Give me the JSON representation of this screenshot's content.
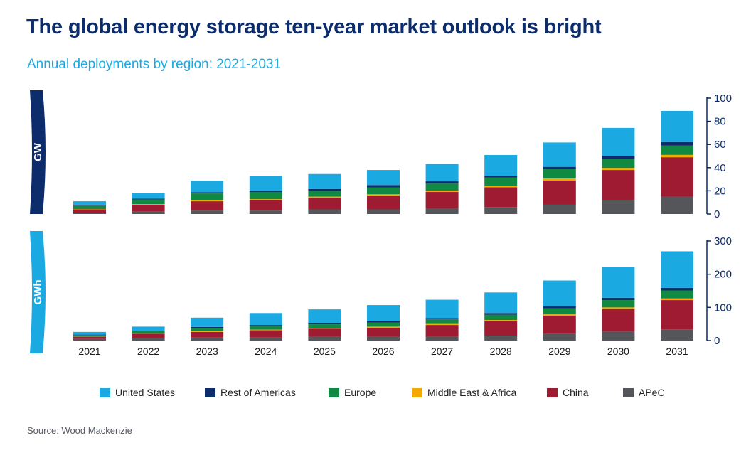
{
  "title": "The global energy storage ten-year market outlook is bright",
  "subtitle": "Annual deployments  by region: 2021-2031",
  "source": "Source: Wood Mackenzie",
  "colors": {
    "United States": "#1ba9e1",
    "Rest of Americas": "#0c2c6b",
    "Europe": "#108a43",
    "Middle East & Africa": "#f2a900",
    "China": "#9e1b32",
    "APeC": "#54565a",
    "axis": "#0c2c6b",
    "gw_tab": "#0c2c6b",
    "gwh_tab": "#1ba9e1"
  },
  "legend": [
    "United States",
    "Rest of Americas",
    "Europe",
    "Middle East & Africa",
    "China",
    "APeC"
  ],
  "chart_data": [
    {
      "type": "bar",
      "stacked": true,
      "unit_label": "GW",
      "categories": [
        "2021",
        "2022",
        "2023",
        "2024",
        "2025",
        "2026",
        "2027",
        "2028",
        "2029",
        "2030",
        "2031"
      ],
      "ylim": [
        0,
        100
      ],
      "yticks": [
        0,
        20,
        40,
        60,
        80,
        100
      ],
      "y_axis_side": "right",
      "series": [
        {
          "name": "APeC",
          "values": [
            1,
            2,
            3,
            3,
            4,
            4,
            5,
            6,
            8,
            12,
            15
          ]
        },
        {
          "name": "China",
          "values": [
            3,
            6,
            8,
            9,
            10,
            12,
            14,
            17,
            21,
            26,
            34
          ]
        },
        {
          "name": "Middle East & Africa",
          "values": [
            0.3,
            0.5,
            0.7,
            0.8,
            1,
            1,
            1.2,
            1.4,
            1.7,
            1.8,
            2
          ]
        },
        {
          "name": "Europe",
          "values": [
            3,
            4,
            6,
            6,
            5,
            6,
            6,
            7,
            8,
            8,
            8
          ]
        },
        {
          "name": "Rest of Americas",
          "values": [
            0.7,
            0.8,
            1,
            1,
            1.5,
            2,
            2,
            1.5,
            2,
            2.5,
            3
          ]
        },
        {
          "name": "United States",
          "values": [
            3,
            5,
            10,
            13,
            13,
            13,
            15,
            18,
            21,
            24,
            27
          ]
        }
      ]
    },
    {
      "type": "bar",
      "stacked": true,
      "unit_label": "GWh",
      "categories": [
        "2021",
        "2022",
        "2023",
        "2024",
        "2025",
        "2026",
        "2027",
        "2028",
        "2029",
        "2030",
        "2031"
      ],
      "ylim": [
        0,
        300
      ],
      "yticks": [
        0,
        100,
        200,
        300
      ],
      "y_axis_side": "right",
      "series": [
        {
          "name": "APeC",
          "values": [
            5,
            7,
            9,
            9,
            11,
            11,
            13,
            15,
            20,
            27,
            34
          ]
        },
        {
          "name": "China",
          "values": [
            7,
            14,
            17,
            22,
            25,
            28,
            34,
            43,
            55,
            68,
            88
          ]
        },
        {
          "name": "Middle East & Africa",
          "values": [
            1,
            1,
            2,
            2,
            2,
            3,
            3,
            4,
            4,
            5,
            5
          ]
        },
        {
          "name": "Europe",
          "values": [
            4,
            6,
            10,
            11,
            11,
            12,
            14,
            16,
            18,
            22,
            24
          ]
        },
        {
          "name": "Rest of Americas",
          "values": [
            1,
            2,
            3,
            3,
            3,
            4,
            4,
            5,
            6,
            7,
            8
          ]
        },
        {
          "name": "United States",
          "values": [
            8,
            12,
            28,
            36,
            42,
            49,
            55,
            62,
            78,
            92,
            110
          ]
        }
      ]
    }
  ]
}
